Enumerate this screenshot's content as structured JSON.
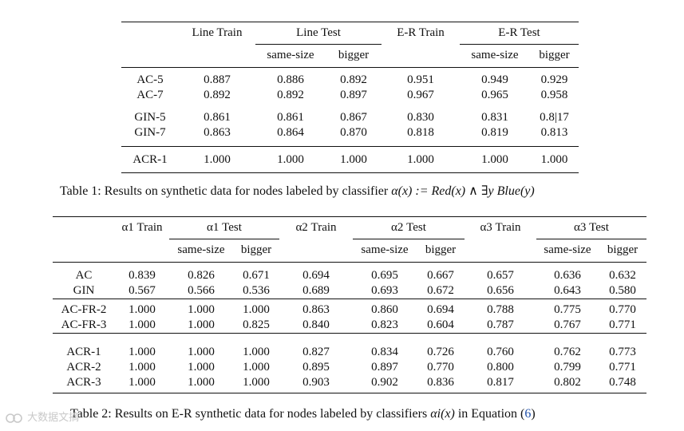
{
  "table1": {
    "headers": {
      "line_train": "Line Train",
      "line_test": "Line Test",
      "er_train": "E-R Train",
      "er_test": "E-R Test",
      "same_size": "same-size",
      "bigger": "bigger"
    },
    "rows": [
      {
        "label": "AC-5",
        "values": [
          "0.887",
          "0.886",
          "0.892",
          "0.951",
          "0.949",
          "0.929"
        ]
      },
      {
        "label": "AC-7",
        "values": [
          "0.892",
          "0.892",
          "0.897",
          "0.967",
          "0.965",
          "0.958"
        ]
      },
      {
        "label": "GIN-5",
        "values": [
          "0.861",
          "0.861",
          "0.867",
          "0.830",
          "0.831",
          "0.8|17"
        ]
      },
      {
        "label": "GIN-7",
        "values": [
          "0.863",
          "0.864",
          "0.870",
          "0.818",
          "0.819",
          "0.813"
        ]
      },
      {
        "label": "ACR-1",
        "values": [
          "1.000",
          "1.000",
          "1.000",
          "1.000",
          "1.000",
          "1.000"
        ]
      }
    ],
    "caption": {
      "prefix": "Table 1: Results on synthetic data for nodes labeled by classifier ",
      "formula": "α(x) := Red(x) ∧ ∃y Blue(y)"
    }
  },
  "table2": {
    "headers": {
      "a1_train": "α1 Train",
      "a1_test": "α1 Test",
      "a2_train": "α2 Train",
      "a2_test": "α2 Test",
      "a3_train": "α3 Train",
      "a3_test": "α3 Test",
      "same_size": "same-size",
      "bigger": "bigger"
    },
    "rows": [
      {
        "label": "AC",
        "values": [
          "0.839",
          "0.826",
          "0.671",
          "0.694",
          "0.695",
          "0.667",
          "0.657",
          "0.636",
          "0.632"
        ]
      },
      {
        "label": "GIN",
        "values": [
          "0.567",
          "0.566",
          "0.536",
          "0.689",
          "0.693",
          "0.672",
          "0.656",
          "0.643",
          "0.580"
        ]
      },
      {
        "label": "AC-FR-2",
        "values": [
          "1.000",
          "1.000",
          "1.000",
          "0.863",
          "0.860",
          "0.694",
          "0.788",
          "0.775",
          "0.770"
        ]
      },
      {
        "label": "AC-FR-3",
        "values": [
          "1.000",
          "1.000",
          "0.825",
          "0.840",
          "0.823",
          "0.604",
          "0.787",
          "0.767",
          "0.771"
        ]
      },
      {
        "label": "ACR-1",
        "values": [
          "1.000",
          "1.000",
          "1.000",
          "0.827",
          "0.834",
          "0.726",
          "0.760",
          "0.762",
          "0.773"
        ]
      },
      {
        "label": "ACR-2",
        "values": [
          "1.000",
          "1.000",
          "1.000",
          "0.895",
          "0.897",
          "0.770",
          "0.800",
          "0.799",
          "0.771"
        ]
      },
      {
        "label": "ACR-3",
        "values": [
          "1.000",
          "1.000",
          "1.000",
          "0.903",
          "0.902",
          "0.836",
          "0.817",
          "0.802",
          "0.748"
        ]
      }
    ],
    "caption": {
      "prefix": "Table 2: Results on E-R synthetic data for nodes labeled by classifiers ",
      "formula": "αi(x)",
      "middle": " in Equation (",
      "ref": "6",
      "suffix": ")"
    }
  },
  "watermark": "大数据文摘"
}
